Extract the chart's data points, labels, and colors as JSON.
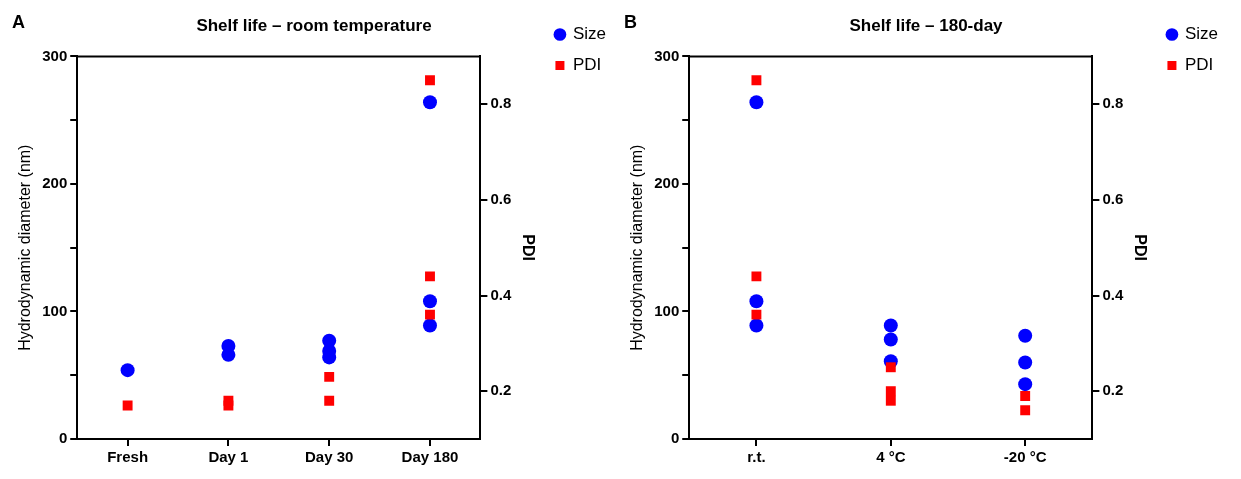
{
  "chart_data": [
    {
      "type": "scatter",
      "title": "Shelf life – room temperature",
      "annotations": [
        "A"
      ],
      "ylabel": "Hydrodynamic diameter (nm)",
      "y2label": "PDI",
      "categories": [
        "Fresh",
        "Day 1",
        "Day 30",
        "Day 180"
      ],
      "ylim": [
        0,
        300
      ],
      "yticks": [
        0,
        {
          "value": 50,
          "label": null
        },
        100,
        {
          "value": 150,
          "label": null
        },
        200,
        {
          "value": 250,
          "label": null
        },
        300
      ],
      "y2lim": [
        0.1,
        0.9
      ],
      "y2ticks": [
        0.2,
        0.4,
        0.6,
        0.8
      ],
      "grid": false,
      "legend": "right",
      "series": [
        {
          "name": "Size",
          "color": "#0000ff",
          "marker": "circle",
          "x": [
            "Fresh",
            "Day 1",
            "Day 1",
            "Day 30",
            "Day 30",
            "Day 30",
            "Day 180",
            "Day 180",
            "Day 180"
          ],
          "values": [
            54,
            73,
            66,
            77,
            69,
            64,
            264,
            108,
            89
          ]
        },
        {
          "name": "PDI",
          "color": "#ff0000",
          "marker": "square",
          "axis": "y2",
          "x": [
            "Fresh",
            "Day 1",
            "Day 1",
            "Day 30",
            "Day 30",
            "Day 180",
            "Day 180",
            "Day 180"
          ],
          "values": [
            0.17,
            0.18,
            0.17,
            0.23,
            0.18,
            0.85,
            0.44,
            0.36
          ]
        }
      ]
    },
    {
      "type": "scatter",
      "title": "Shelf life – 180-day",
      "annotations": [
        "B"
      ],
      "ylabel": "Hydrodynamic diameter (nm)",
      "y2label": "PDI",
      "categories": [
        "r.t.",
        "4 °C",
        "-20 °C"
      ],
      "ylim": [
        0,
        300
      ],
      "yticks": [
        0,
        {
          "value": 50,
          "label": null
        },
        100,
        {
          "value": 150,
          "label": null
        },
        200,
        {
          "value": 250,
          "label": null
        },
        300
      ],
      "y2lim": [
        0.1,
        0.9
      ],
      "y2ticks": [
        0.2,
        0.4,
        0.6,
        0.8
      ],
      "grid": false,
      "legend": "right",
      "series": [
        {
          "name": "Size",
          "color": "#0000ff",
          "marker": "circle",
          "x": [
            "r.t.",
            "r.t.",
            "r.t.",
            "4 °C",
            "4 °C",
            "4 °C",
            "-20 °C",
            "-20 °C",
            "-20 °C"
          ],
          "values": [
            264,
            108,
            89,
            89,
            78,
            61,
            81,
            60,
            43
          ]
        },
        {
          "name": "PDI",
          "color": "#ff0000",
          "marker": "square",
          "axis": "y2",
          "x": [
            "r.t.",
            "r.t.",
            "r.t.",
            "4 °C",
            "4 °C",
            "4 °C",
            "-20 °C",
            "-20 °C",
            "-20 °C"
          ],
          "values": [
            0.85,
            0.44,
            0.36,
            0.25,
            0.2,
            0.18,
            0.19,
            null,
            0.16
          ]
        }
      ]
    }
  ]
}
